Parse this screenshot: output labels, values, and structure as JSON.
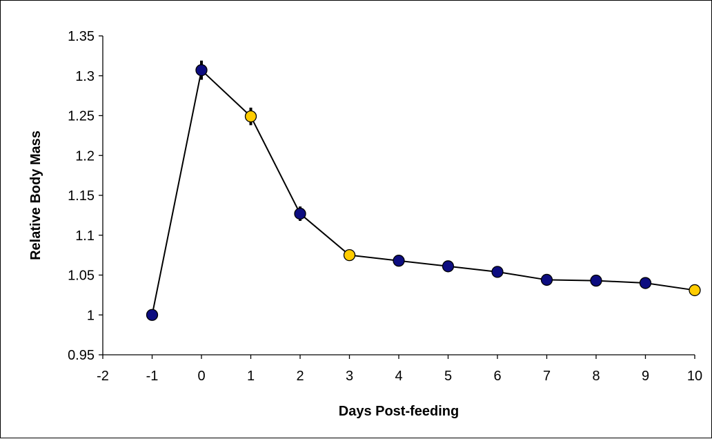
{
  "chart_data": {
    "type": "scatter",
    "title": "",
    "xlabel": "Days Post-feeding",
    "ylabel": "Relative Body Mass",
    "xlim": [
      -2,
      10
    ],
    "ylim": [
      0.95,
      1.35
    ],
    "x_ticks": [
      -2,
      -1,
      0,
      1,
      2,
      3,
      4,
      5,
      6,
      7,
      8,
      9,
      10
    ],
    "y_ticks": [
      0.95,
      1,
      1.05,
      1.1,
      1.15,
      1.2,
      1.25,
      1.3,
      1.35
    ],
    "y_tick_labels": [
      "0.95",
      "1",
      "1.05",
      "1.1",
      "1.15",
      "1.2",
      "1.25",
      "1.3",
      "1.35"
    ],
    "grid": false,
    "legend": "none",
    "series": [
      {
        "line_color": "#000000",
        "points": [
          {
            "x": -1,
            "y": 1.0,
            "err": 0.0,
            "color": "#0d0d80"
          },
          {
            "x": 0,
            "y": 1.307,
            "err": 0.012,
            "color": "#0d0d80"
          },
          {
            "x": 1,
            "y": 1.249,
            "err": 0.011,
            "color": "#ffcc00"
          },
          {
            "x": 2,
            "y": 1.127,
            "err": 0.009,
            "color": "#0d0d80"
          },
          {
            "x": 3,
            "y": 1.075,
            "err": 0.007,
            "color": "#ffcc00"
          },
          {
            "x": 4,
            "y": 1.068,
            "err": 0.007,
            "color": "#0d0d80"
          },
          {
            "x": 5,
            "y": 1.061,
            "err": 0.006,
            "color": "#0d0d80"
          },
          {
            "x": 6,
            "y": 1.054,
            "err": 0.005,
            "color": "#0d0d80"
          },
          {
            "x": 7,
            "y": 1.044,
            "err": 0.004,
            "color": "#0d0d80"
          },
          {
            "x": 8,
            "y": 1.043,
            "err": 0.004,
            "color": "#0d0d80"
          },
          {
            "x": 9,
            "y": 1.04,
            "err": 0.004,
            "color": "#0d0d80"
          },
          {
            "x": 10,
            "y": 1.031,
            "err": 0.004,
            "color": "#ffcc00"
          }
        ]
      }
    ]
  }
}
